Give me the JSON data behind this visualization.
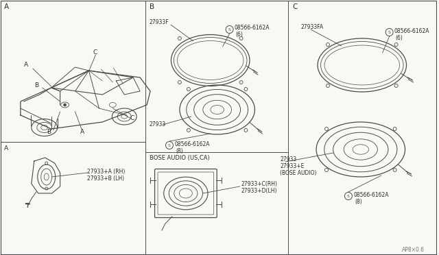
{
  "bg_color": "#f8f8f4",
  "line_color": "#4a4a4a",
  "text_color": "#2a2a2a",
  "light_line": "#888888",
  "watermark": "AP8×0.6",
  "section_A_label": "A",
  "section_B_label": "B",
  "section_C_label": "C",
  "sub_A_label": "A",
  "part_b_frame": "27933F",
  "part_b_screw6_label": "08566-6162A",
  "part_b_screw6_qty": "(6)",
  "part_b_speaker": "27933",
  "part_b_screw8_label": "08566-6162A",
  "part_b_screw8_qty": "(8)",
  "part_b_bose_header": "BOSE AUDIO (US,CA)",
  "part_b_bose_rh": "27933+C(RH)",
  "part_b_bose_lh": "27933+D(LH)",
  "part_c_frame": "27933FA",
  "part_c_screw6_label": "08566-6162A",
  "part_c_screw6_qty": "(6)",
  "part_c_speaker1": "27933",
  "part_c_speaker2": "27933+E",
  "part_c_speaker3": "(BOSE AUDIO)",
  "part_c_screw8_label": "08566-6162A",
  "part_c_screw8_qty": "(8)",
  "part_a_rh": "27933+A (RH)",
  "part_a_lh": "27933+B (LH)"
}
